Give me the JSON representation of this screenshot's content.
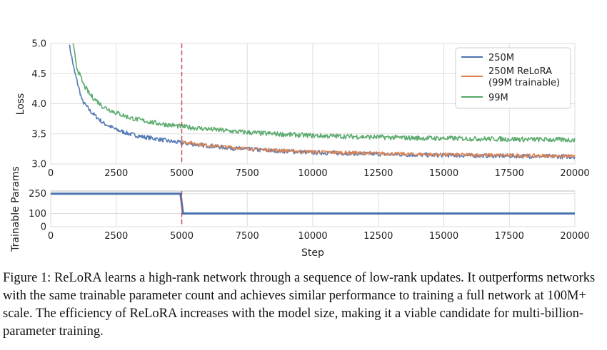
{
  "chart_data": [
    {
      "type": "line",
      "xlabel": "",
      "ylabel": "Loss",
      "xlim": [
        0,
        20000
      ],
      "ylim": [
        3.0,
        5.0
      ],
      "x_ticks": [
        0,
        2500,
        5000,
        7500,
        10000,
        12500,
        15000,
        17500,
        20000
      ],
      "y_ticks": [
        3.0,
        3.5,
        4.0,
        4.5,
        5.0
      ],
      "grid": true,
      "legend_position": "top-right",
      "vline": {
        "x": 5000,
        "color": "#c44e52",
        "style": "dashed"
      },
      "series": [
        {
          "name": "250M",
          "color": "#4c72b0",
          "x": [
            700,
            900,
            1200,
            1500,
            2000,
            2500,
            3000,
            3500,
            4000,
            4500,
            5000,
            6000,
            7000,
            8000,
            9000,
            10000,
            12000,
            14000,
            16000,
            18000,
            20000
          ],
          "y": [
            5.0,
            4.55,
            4.05,
            3.88,
            3.68,
            3.57,
            3.5,
            3.45,
            3.42,
            3.38,
            3.35,
            3.3,
            3.26,
            3.23,
            3.21,
            3.19,
            3.17,
            3.15,
            3.14,
            3.13,
            3.12
          ]
        },
        {
          "name": "250M ReLoRA\n(99M trainable)",
          "color": "#dd8452",
          "x": [
            5000,
            6000,
            7000,
            8000,
            9000,
            10000,
            12000,
            14000,
            16000,
            18000,
            20000
          ],
          "y": [
            3.37,
            3.31,
            3.27,
            3.24,
            3.22,
            3.2,
            3.18,
            3.16,
            3.15,
            3.14,
            3.13
          ]
        },
        {
          "name": "99M",
          "color": "#55a868",
          "x": [
            850,
            1000,
            1250,
            1500,
            2000,
            2500,
            3000,
            3500,
            4000,
            4500,
            5000,
            6000,
            7000,
            8000,
            9000,
            10000,
            12000,
            14000,
            16000,
            18000,
            20000
          ],
          "y": [
            5.0,
            4.6,
            4.32,
            4.15,
            3.95,
            3.85,
            3.77,
            3.72,
            3.68,
            3.65,
            3.62,
            3.58,
            3.54,
            3.51,
            3.49,
            3.47,
            3.45,
            3.43,
            3.42,
            3.41,
            3.4
          ]
        }
      ]
    },
    {
      "type": "line",
      "xlabel": "Step",
      "ylabel": "Trainable Params",
      "xlim": [
        0,
        20000
      ],
      "ylim": [
        0,
        270
      ],
      "x_ticks": [
        0,
        2500,
        5000,
        7500,
        10000,
        12500,
        15000,
        17500,
        20000
      ],
      "y_ticks": [
        0,
        100,
        250
      ],
      "grid": true,
      "vline": {
        "x": 5000,
        "color": "#c44e52",
        "style": "dashed"
      },
      "series": [
        {
          "color": "#4c72b0",
          "x": [
            0,
            4950,
            4950,
            5050,
            5050,
            20000
          ],
          "y": [
            250,
            250,
            250,
            100,
            100,
            100
          ]
        }
      ]
    }
  ],
  "caption": "Figure 1: ReLoRA learns a high-rank network through a sequence of low-rank updates. It outperforms networks with the same trainable parameter count and achieves similar performance to training a full network at 100M+ scale. The efficiency of ReLoRA increases with the model size, making it a viable candidate for multi-billion-parameter training."
}
